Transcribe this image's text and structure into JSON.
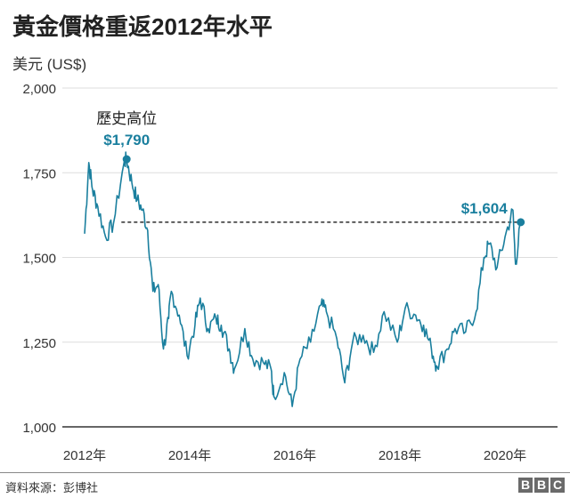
{
  "chart_data": {
    "type": "line",
    "title": "黃金價格重返2012年水平",
    "ylabel": "美元 (US$)",
    "xlabel": "",
    "ylim": [
      1000,
      2000
    ],
    "yticks": [
      1000,
      1250,
      1500,
      1750,
      2000
    ],
    "ytick_labels": [
      "1,000",
      "1,250",
      "1,500",
      "1,750",
      "2,000"
    ],
    "xlim": [
      2011.6,
      2021.0
    ],
    "xticks": [
      2012,
      2014,
      2016,
      2018,
      2020
    ],
    "xtick_labels": [
      "2012年",
      "2014年",
      "2016年",
      "2018年",
      "2020年"
    ],
    "grid": true,
    "color": "#1a7f9e",
    "series": [
      {
        "name": "黃金價格",
        "x": [
          2012.0,
          2012.08,
          2012.15,
          2012.25,
          2012.4,
          2012.55,
          2012.75,
          2012.8,
          2012.9,
          2013.0,
          2013.1,
          2013.2,
          2013.3,
          2013.4,
          2013.5,
          2013.6,
          2013.65,
          2013.8,
          2013.95,
          2014.1,
          2014.2,
          2014.35,
          2014.5,
          2014.6,
          2014.75,
          2014.85,
          2015.05,
          2015.2,
          2015.4,
          2015.55,
          2015.6,
          2015.8,
          2015.95,
          2016.1,
          2016.3,
          2016.5,
          2016.6,
          2016.8,
          2016.95,
          2017.1,
          2017.3,
          2017.5,
          2017.7,
          2017.95,
          2018.1,
          2018.3,
          2018.45,
          2018.6,
          2018.7,
          2018.9,
          2019.05,
          2019.25,
          2019.45,
          2019.6,
          2019.7,
          2019.85,
          2020.0,
          2020.15,
          2020.2,
          2020.3
        ],
        "y": [
          1570,
          1780,
          1700,
          1650,
          1560,
          1600,
          1780,
          1790,
          1720,
          1670,
          1640,
          1580,
          1400,
          1420,
          1230,
          1320,
          1400,
          1330,
          1210,
          1300,
          1380,
          1290,
          1320,
          1300,
          1230,
          1170,
          1290,
          1200,
          1190,
          1170,
          1090,
          1160,
          1060,
          1200,
          1250,
          1360,
          1340,
          1260,
          1130,
          1250,
          1270,
          1220,
          1340,
          1250,
          1350,
          1330,
          1300,
          1230,
          1180,
          1230,
          1290,
          1280,
          1340,
          1500,
          1540,
          1470,
          1560,
          1640,
          1480,
          1604
        ]
      }
    ],
    "annotations": [
      {
        "label": "歷史高位",
        "value_label": "$1,790",
        "x": 2012.8,
        "y": 1790
      },
      {
        "value_label": "$1,604",
        "x": 2020.3,
        "y": 1604
      }
    ],
    "reference_line": {
      "y": 1604,
      "from_x": 2012.7,
      "to_x": 2020.3,
      "style": "dashed"
    }
  },
  "footer": {
    "source": "資料來源：彭博社",
    "logo": [
      "B",
      "B",
      "C"
    ]
  }
}
